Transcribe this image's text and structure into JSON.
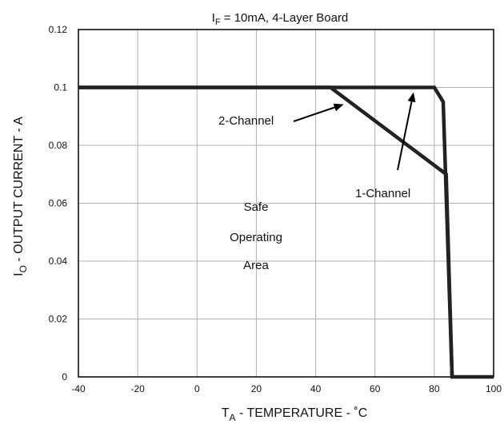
{
  "chart_data": {
    "type": "line",
    "title": {
      "sym": "I",
      "sub": "F",
      "rest": " =  10mA,  4-Layer  Board"
    },
    "xlabel": {
      "sym": "T",
      "sub": "A",
      "rest": " - TEMPERATURE - ˚C"
    },
    "ylabel": {
      "sym": "I",
      "sub": "O",
      "rest": " - OUTPUT CURRENT - A"
    },
    "xlim": [
      -40,
      100
    ],
    "ylim": [
      0,
      0.12
    ],
    "xticks": [
      "-40",
      "-20",
      "0",
      "20",
      "40",
      "60",
      "80",
      "100"
    ],
    "yticks": [
      "0",
      "0.02",
      "0.04",
      "0.06",
      "0.08",
      "0.1",
      "0.12"
    ],
    "grid": true,
    "series": [
      {
        "name": "1-Channel",
        "points": [
          [
            -40,
            0.1
          ],
          [
            80,
            0.1
          ],
          [
            83,
            0.095
          ],
          [
            86,
            0
          ],
          [
            100,
            0
          ]
        ]
      },
      {
        "name": "2-Channel",
        "points": [
          [
            -40,
            0.1
          ],
          [
            45,
            0.1
          ],
          [
            84,
            0.07
          ],
          [
            86,
            0
          ]
        ]
      }
    ],
    "region_label": [
      "Safe",
      "Operating",
      "Area"
    ],
    "annotations": [
      {
        "text": "2-Channel",
        "target": [
          50,
          0.095
        ]
      },
      {
        "text": "1-Channel",
        "target": [
          73,
          0.1
        ]
      }
    ],
    "line_color": "#222222",
    "grid_color": "#b0b0b0"
  }
}
